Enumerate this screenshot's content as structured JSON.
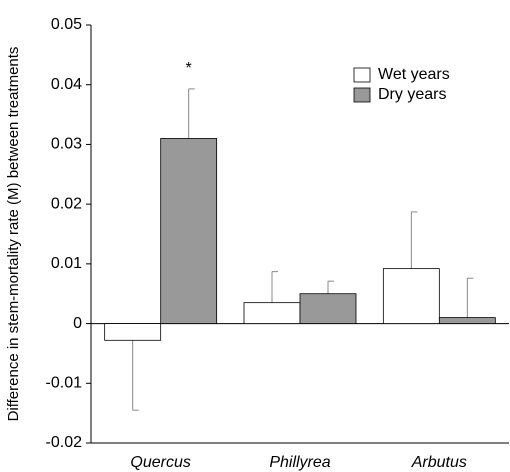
{
  "chart_data": {
    "type": "bar",
    "y_label": "Difference in stem-mortality rate (M) between treatments",
    "categories": [
      "Quercus",
      "Phillyrea",
      "Arbutus"
    ],
    "series": [
      {
        "name": "Wet years",
        "color": "#ffffff",
        "values": [
          -0.0028,
          0.0035,
          0.0092
        ],
        "errors": [
          0.0117,
          0.0052,
          0.0095
        ]
      },
      {
        "name": "Dry years",
        "color": "#999999",
        "values": [
          0.031,
          0.005,
          0.001
        ],
        "errors": [
          0.0083,
          0.0021,
          0.0066
        ]
      }
    ],
    "annotation": "*",
    "ylim": [
      -0.02,
      0.05
    ],
    "yticks": [
      -0.02,
      -0.01,
      0,
      0.01,
      0.02,
      0.03,
      0.04,
      0.05
    ],
    "legend": "upper right"
  }
}
